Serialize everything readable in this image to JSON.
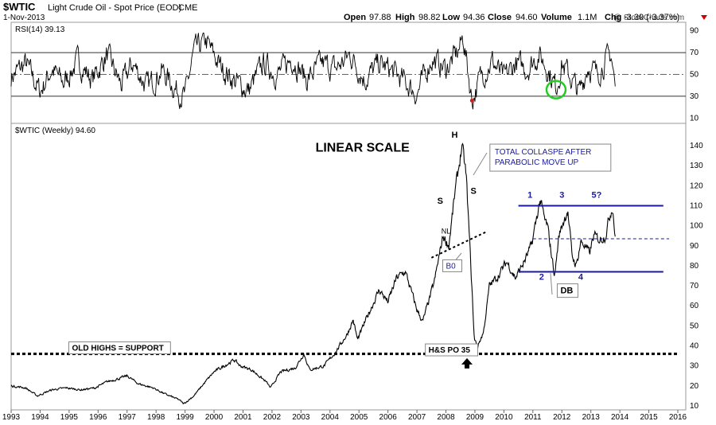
{
  "header": {
    "symbol": "$WTIC",
    "name": "Light Crude Oil - Spot Price (EOD)",
    "exchange": "CME",
    "date": "1-Nov-2013",
    "open_label": "Open",
    "open": "97.88",
    "high_label": "High",
    "high": "98.82",
    "low_label": "Low",
    "low": "94.36",
    "close_label": "Close",
    "close": "94.60",
    "volume_label": "Volume",
    "volume": "1.1M",
    "chg_label": "Chg",
    "chg": "-3.30 (-3.37%)",
    "watermark": "@ StockCharts.com"
  },
  "colors": {
    "price": "#000000",
    "annotation_blue": "#1a1aa0",
    "support_line": "#000000",
    "rsi_circle": "#22cc22",
    "rsi_low_marker": "#cc2222",
    "chg_down": "#cc0000"
  },
  "chart_data": [
    {
      "type": "line",
      "title": "RSI(14) 39.13",
      "ylim": [
        0,
        100
      ],
      "y_ticks": [
        10,
        30,
        50,
        70,
        90
      ],
      "reference_lines": [
        30,
        50,
        70
      ],
      "series": [
        {
          "name": "RSI(14)",
          "x": [
            1993.0,
            1993.5,
            1994.0,
            1994.4,
            1994.8,
            1995.3,
            1995.8,
            1996.3,
            1996.8,
            1997.2,
            1997.7,
            1998.2,
            1998.7,
            1999.0,
            1999.3,
            1999.7,
            2000.2,
            2000.7,
            2001.2,
            2001.7,
            2002.2,
            2002.7,
            2003.2,
            2003.7,
            2004.2,
            2004.7,
            2005.2,
            2005.7,
            2006.2,
            2006.7,
            2007.0,
            2007.5,
            2008.0,
            2008.4,
            2008.6,
            2008.9,
            2009.2,
            2009.6,
            2010.0,
            2010.4,
            2010.8,
            2011.2,
            2011.5,
            2011.8,
            2012.0,
            2012.3,
            2012.6,
            2012.9,
            2013.2,
            2013.5,
            2013.7,
            2013.84
          ],
          "values": [
            48,
            60,
            34,
            55,
            42,
            62,
            45,
            68,
            40,
            60,
            38,
            54,
            36,
            30,
            70,
            81,
            58,
            44,
            35,
            60,
            50,
            65,
            45,
            60,
            55,
            68,
            45,
            60,
            52,
            40,
            32,
            64,
            55,
            70,
            84,
            26,
            48,
            62,
            46,
            60,
            55,
            68,
            56,
            38,
            60,
            47,
            33,
            58,
            50,
            62,
            68,
            39
          ]
        }
      ],
      "annotations": [
        {
          "type": "circle",
          "x": 2011.8,
          "y": 36,
          "color": "#22cc22"
        },
        {
          "type": "marker",
          "x": 2008.9,
          "y": 26,
          "color": "#cc2222"
        }
      ]
    },
    {
      "type": "line",
      "title": "$WTIC (Weekly) 94.60",
      "ylim": [
        10,
        148
      ],
      "y_ticks": [
        10,
        20,
        30,
        40,
        50,
        60,
        70,
        80,
        90,
        100,
        110,
        120,
        130,
        140
      ],
      "xlim": [
        1993,
        2016
      ],
      "x_ticks": [
        1993,
        1994,
        1995,
        1996,
        1997,
        1998,
        1999,
        2000,
        2001,
        2002,
        2003,
        2004,
        2005,
        2006,
        2007,
        2008,
        2009,
        2010,
        2011,
        2012,
        2013,
        2014,
        2015,
        2016
      ],
      "series": [
        {
          "name": "$WTIC",
          "x": [
            1993.0,
            1993.5,
            1993.9,
            1994.4,
            1994.9,
            1995.4,
            1995.9,
            1996.3,
            1996.8,
            1997.0,
            1997.4,
            1997.9,
            1998.3,
            1998.8,
            1998.95,
            1999.3,
            1999.7,
            2000.0,
            2000.7,
            2000.9,
            2001.3,
            2001.8,
            2001.95,
            2002.3,
            2002.8,
            2003.1,
            2003.3,
            2003.8,
            2004.2,
            2004.6,
            2004.8,
            2004.95,
            2005.3,
            2005.7,
            2006.0,
            2006.3,
            2006.6,
            2007.0,
            2007.2,
            2007.6,
            2007.9,
            2008.1,
            2008.3,
            2008.55,
            2008.7,
            2008.9,
            2008.98,
            2009.1,
            2009.3,
            2009.5,
            2009.8,
            2010.1,
            2010.4,
            2010.7,
            2010.95,
            2011.25,
            2011.4,
            2011.5,
            2011.6,
            2011.75,
            2011.9,
            2012.0,
            2012.2,
            2012.35,
            2012.5,
            2012.65,
            2012.8,
            2012.95,
            2013.1,
            2013.3,
            2013.5,
            2013.65,
            2013.75,
            2013.84
          ],
          "values": [
            20,
            19,
            15,
            18,
            19,
            18,
            19,
            22,
            24,
            25,
            21,
            19,
            16,
            13,
            11,
            15,
            22,
            27,
            33,
            30,
            28,
            22,
            19,
            27,
            29,
            36,
            28,
            30,
            37,
            46,
            53,
            43,
            55,
            68,
            62,
            74,
            77,
            58,
            52,
            72,
            95,
            90,
            115,
            140,
            125,
            68,
            43,
            40,
            47,
            70,
            75,
            82,
            74,
            82,
            90,
            113,
            103,
            100,
            90,
            75,
            95,
            100,
            108,
            85,
            80,
            92,
            90,
            86,
            95,
            93,
            95,
            105,
            110,
            94.6
          ]
        }
      ],
      "reference_lines": [
        {
          "y": 36,
          "style": "thick-dotted",
          "x_start": 1993,
          "x_end": 2016
        },
        {
          "y": 110,
          "style": "solid",
          "color": "#1a1aa0",
          "x_start": 2010.5,
          "x_end": 2015.5
        },
        {
          "y": 77,
          "style": "solid",
          "color": "#1a1aa0",
          "x_start": 2010.5,
          "x_end": 2015.5
        },
        {
          "y": 93.5,
          "style": "dashed",
          "color": "#1a1aa0",
          "x_start": 2011.0,
          "x_end": 2015.7
        }
      ],
      "annotations": [
        {
          "text": "LINEAR SCALE",
          "x": 2003.5,
          "y": 137,
          "style": "bold-title"
        },
        {
          "text": "TOTAL COLLASPE AFTER PARABOLIC MOVE UP",
          "x": 2009.6,
          "y": 136,
          "style": "callout-blue"
        },
        {
          "text": "OLD HIGHS = SUPPORT",
          "x": 1995.1,
          "y": 38,
          "style": "box"
        },
        {
          "text": "H&S PO 35",
          "x": 2007.4,
          "y": 37,
          "style": "box"
        },
        {
          "text": "B0",
          "x": 2008.0,
          "y": 79,
          "style": "callout-blue"
        },
        {
          "text": "DB",
          "x": 2011.95,
          "y": 67,
          "style": "callout-black"
        },
        {
          "text": "H",
          "x": 2008.3,
          "y": 144,
          "style": "label"
        },
        {
          "text": "S",
          "x": 2007.8,
          "y": 111,
          "style": "label"
        },
        {
          "text": "S",
          "x": 2008.95,
          "y": 116,
          "style": "label"
        },
        {
          "text": "NL",
          "x": 2008.0,
          "y": 96,
          "style": "label-small"
        },
        {
          "text": "1",
          "x": 2010.9,
          "y": 114,
          "style": "label-blue"
        },
        {
          "text": "2",
          "x": 2011.3,
          "y": 73,
          "style": "label-blue"
        },
        {
          "text": "3",
          "x": 2012.0,
          "y": 114,
          "style": "label-blue"
        },
        {
          "text": "4",
          "x": 2012.65,
          "y": 73,
          "style": "label-blue"
        },
        {
          "text": "5?",
          "x": 2013.2,
          "y": 114,
          "style": "label-blue"
        }
      ]
    }
  ]
}
